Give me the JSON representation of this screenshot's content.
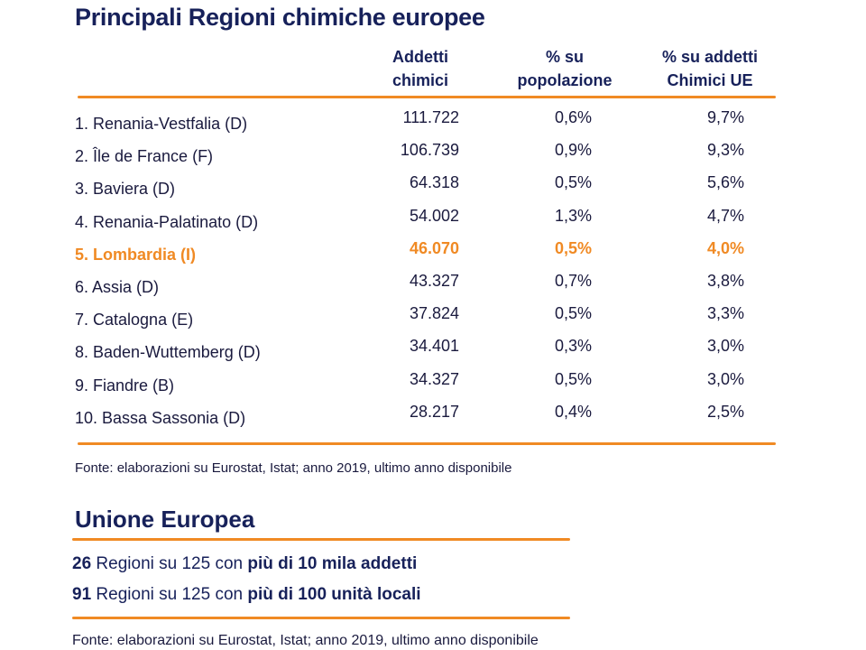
{
  "title": "Principali Regioni chimiche europee",
  "columns": [
    {
      "line1": "Addetti",
      "line2": "chimici"
    },
    {
      "line1": "% su",
      "line2": "popolazione"
    },
    {
      "line1": "% su addetti",
      "line2": "Chimici UE"
    }
  ],
  "rows": [
    {
      "name": "1. Renania-Vestfalia (D)",
      "addetti": "111.722",
      "pop": "0,6%",
      "ue": "9,7%"
    },
    {
      "name": "2. Île de France  (F)",
      "addetti": "106.739",
      "pop": "0,9%",
      "ue": "9,3%"
    },
    {
      "name": "3. Baviera (D)",
      "addetti": "64.318",
      "pop": "0,5%",
      "ue": "5,6%"
    },
    {
      "name": "4. Renania-Palatinato (D)",
      "addetti": "54.002",
      "pop": "1,3%",
      "ue": "4,7%"
    },
    {
      "name": "5. Lombardia (I)",
      "addetti": "46.070",
      "pop": "0,5%",
      "ue": "4,0%"
    },
    {
      "name": "6. Assia (D)",
      "addetti": "43.327",
      "pop": "0,7%",
      "ue": "3,8%"
    },
    {
      "name": "7. Catalogna (E)",
      "addetti": "37.824",
      "pop": "0,5%",
      "ue": "3,3%"
    },
    {
      "name": "8. Baden-Wuttemberg (D)",
      "addetti": "34.401",
      "pop": "0,3%",
      "ue": "3,0%"
    },
    {
      "name": "9. Fiandre (B)",
      "addetti": "34.327",
      "pop": "0,5%",
      "ue": "3,0%"
    },
    {
      "name": "10. Bassa Sassonia (D)",
      "addetti": "28.217",
      "pop": "0,4%",
      "ue": "2,5%"
    }
  ],
  "highlight_color": "#f08a24",
  "source_1": "Fonte: elaborazioni su Eurostat, Istat; anno 2019, ultimo anno disponibile",
  "eu": {
    "title": "Unione Europea",
    "stat1": {
      "num": "26",
      "text": " Regioni su 125 con ",
      "bold": "più di 10 mila addetti"
    },
    "stat2": {
      "num": "91",
      "text": " Regioni su 125 con ",
      "bold": "più di 100 unità locali"
    }
  },
  "source_2": "Fonte: elaborazioni su Eurostat, Istat; anno 2019, ultimo anno disponibile"
}
